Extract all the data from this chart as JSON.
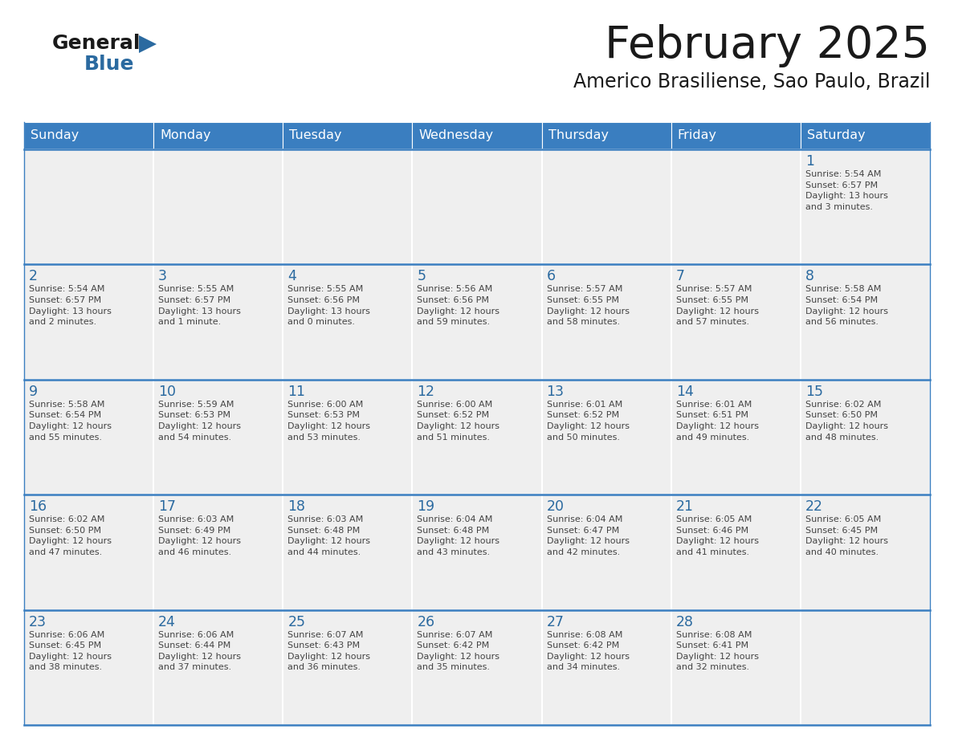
{
  "title": "February 2025",
  "subtitle": "Americo Brasiliense, Sao Paulo, Brazil",
  "header_bg": "#3A7EC0",
  "header_text": "#FFFFFF",
  "cell_bg": "#EFEFEF",
  "day_number_color": "#2B6AA0",
  "cell_text_color": "#444444",
  "border_color": "#2B5F9E",
  "line_color": "#3A7EC0",
  "days_of_week": [
    "Sunday",
    "Monday",
    "Tuesday",
    "Wednesday",
    "Thursday",
    "Friday",
    "Saturday"
  ],
  "weeks": [
    [
      {
        "day": null,
        "info": null
      },
      {
        "day": null,
        "info": null
      },
      {
        "day": null,
        "info": null
      },
      {
        "day": null,
        "info": null
      },
      {
        "day": null,
        "info": null
      },
      {
        "day": null,
        "info": null
      },
      {
        "day": "1",
        "info": "Sunrise: 5:54 AM\nSunset: 6:57 PM\nDaylight: 13 hours\nand 3 minutes."
      }
    ],
    [
      {
        "day": "2",
        "info": "Sunrise: 5:54 AM\nSunset: 6:57 PM\nDaylight: 13 hours\nand 2 minutes."
      },
      {
        "day": "3",
        "info": "Sunrise: 5:55 AM\nSunset: 6:57 PM\nDaylight: 13 hours\nand 1 minute."
      },
      {
        "day": "4",
        "info": "Sunrise: 5:55 AM\nSunset: 6:56 PM\nDaylight: 13 hours\nand 0 minutes."
      },
      {
        "day": "5",
        "info": "Sunrise: 5:56 AM\nSunset: 6:56 PM\nDaylight: 12 hours\nand 59 minutes."
      },
      {
        "day": "6",
        "info": "Sunrise: 5:57 AM\nSunset: 6:55 PM\nDaylight: 12 hours\nand 58 minutes."
      },
      {
        "day": "7",
        "info": "Sunrise: 5:57 AM\nSunset: 6:55 PM\nDaylight: 12 hours\nand 57 minutes."
      },
      {
        "day": "8",
        "info": "Sunrise: 5:58 AM\nSunset: 6:54 PM\nDaylight: 12 hours\nand 56 minutes."
      }
    ],
    [
      {
        "day": "9",
        "info": "Sunrise: 5:58 AM\nSunset: 6:54 PM\nDaylight: 12 hours\nand 55 minutes."
      },
      {
        "day": "10",
        "info": "Sunrise: 5:59 AM\nSunset: 6:53 PM\nDaylight: 12 hours\nand 54 minutes."
      },
      {
        "day": "11",
        "info": "Sunrise: 6:00 AM\nSunset: 6:53 PM\nDaylight: 12 hours\nand 53 minutes."
      },
      {
        "day": "12",
        "info": "Sunrise: 6:00 AM\nSunset: 6:52 PM\nDaylight: 12 hours\nand 51 minutes."
      },
      {
        "day": "13",
        "info": "Sunrise: 6:01 AM\nSunset: 6:52 PM\nDaylight: 12 hours\nand 50 minutes."
      },
      {
        "day": "14",
        "info": "Sunrise: 6:01 AM\nSunset: 6:51 PM\nDaylight: 12 hours\nand 49 minutes."
      },
      {
        "day": "15",
        "info": "Sunrise: 6:02 AM\nSunset: 6:50 PM\nDaylight: 12 hours\nand 48 minutes."
      }
    ],
    [
      {
        "day": "16",
        "info": "Sunrise: 6:02 AM\nSunset: 6:50 PM\nDaylight: 12 hours\nand 47 minutes."
      },
      {
        "day": "17",
        "info": "Sunrise: 6:03 AM\nSunset: 6:49 PM\nDaylight: 12 hours\nand 46 minutes."
      },
      {
        "day": "18",
        "info": "Sunrise: 6:03 AM\nSunset: 6:48 PM\nDaylight: 12 hours\nand 44 minutes."
      },
      {
        "day": "19",
        "info": "Sunrise: 6:04 AM\nSunset: 6:48 PM\nDaylight: 12 hours\nand 43 minutes."
      },
      {
        "day": "20",
        "info": "Sunrise: 6:04 AM\nSunset: 6:47 PM\nDaylight: 12 hours\nand 42 minutes."
      },
      {
        "day": "21",
        "info": "Sunrise: 6:05 AM\nSunset: 6:46 PM\nDaylight: 12 hours\nand 41 minutes."
      },
      {
        "day": "22",
        "info": "Sunrise: 6:05 AM\nSunset: 6:45 PM\nDaylight: 12 hours\nand 40 minutes."
      }
    ],
    [
      {
        "day": "23",
        "info": "Sunrise: 6:06 AM\nSunset: 6:45 PM\nDaylight: 12 hours\nand 38 minutes."
      },
      {
        "day": "24",
        "info": "Sunrise: 6:06 AM\nSunset: 6:44 PM\nDaylight: 12 hours\nand 37 minutes."
      },
      {
        "day": "25",
        "info": "Sunrise: 6:07 AM\nSunset: 6:43 PM\nDaylight: 12 hours\nand 36 minutes."
      },
      {
        "day": "26",
        "info": "Sunrise: 6:07 AM\nSunset: 6:42 PM\nDaylight: 12 hours\nand 35 minutes."
      },
      {
        "day": "27",
        "info": "Sunrise: 6:08 AM\nSunset: 6:42 PM\nDaylight: 12 hours\nand 34 minutes."
      },
      {
        "day": "28",
        "info": "Sunrise: 6:08 AM\nSunset: 6:41 PM\nDaylight: 12 hours\nand 32 minutes."
      },
      {
        "day": null,
        "info": null
      }
    ]
  ],
  "logo_general_color": "#1a1a1a",
  "logo_blue_color": "#2B6AA0",
  "logo_triangle_color": "#2B6AA0",
  "title_color": "#1a1a1a",
  "subtitle_color": "#1a1a1a"
}
